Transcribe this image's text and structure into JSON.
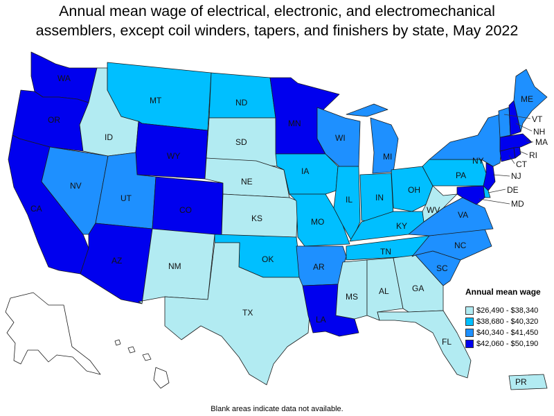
{
  "title": {
    "line1": "Annual mean wage of electrical, electronic, and electromechanical",
    "line2": "assemblers, except coil winders, tapers, and finishers by state, May 2022"
  },
  "legend": {
    "title": "Annual mean wage",
    "bins": [
      {
        "label": "$26,490 - $38,340",
        "color": "#b2ebf2"
      },
      {
        "label": "$38,680 - $40,320",
        "color": "#00bfff"
      },
      {
        "label": "$40,340 - $41,450",
        "color": "#1e90ff"
      },
      {
        "label": "$42,060 - $50,190",
        "color": "#0000ee"
      }
    ]
  },
  "footnote": "Blank areas indicate data not available.",
  "states": {
    "WA": 3,
    "OR": 3,
    "CA": 3,
    "NV": 2,
    "ID": 0,
    "MT": 1,
    "WY": 3,
    "UT": 2,
    "AZ": 3,
    "CO": 3,
    "NM": 0,
    "ND": 1,
    "SD": 0,
    "NE": 0,
    "KS": 0,
    "OK": 1,
    "TX": 0,
    "MN": 3,
    "IA": 1,
    "MO": 1,
    "AR": 2,
    "LA": 3,
    "WI": 2,
    "IL": 1,
    "MS": 0,
    "AL": 0,
    "MI": 2,
    "IN": 1,
    "OH": 1,
    "KY": 1,
    "TN": 1,
    "GA": 0,
    "FL": 0,
    "SC": 2,
    "NC": 2,
    "VA": 2,
    "WV": 0,
    "PA": 1,
    "NY": 2,
    "NJ": 3,
    "DE": 1,
    "MD": 3,
    "CT": 3,
    "RI": 3,
    "MA": 3,
    "VT": 2,
    "NH": 3,
    "ME": 2,
    "PR": 0
  }
}
